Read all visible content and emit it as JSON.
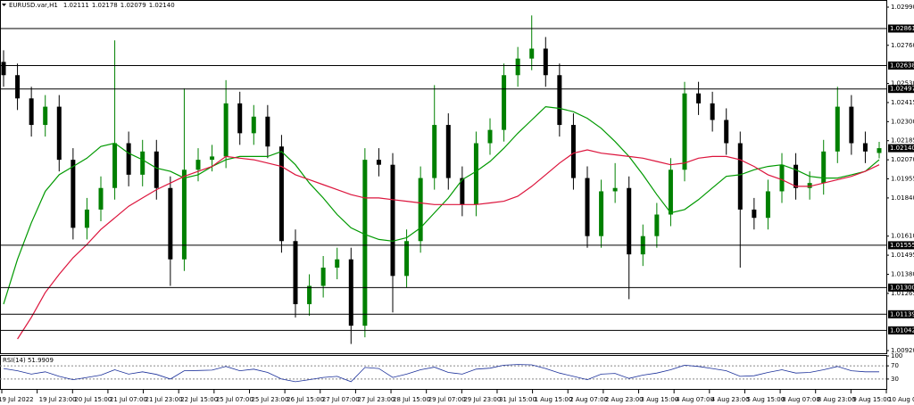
{
  "chart_data": {
    "type": "candlestick",
    "title": "EURUSD.var,H1",
    "ohlc_labels": [
      "1.02111",
      "1.02178",
      "1.02079",
      "1.02140"
    ],
    "up_color": "#008000",
    "down_color": "#000000",
    "ylim": [
      1.00904,
      1.03033
    ],
    "yticks": [
      {
        "value": 1.0299,
        "label": "1.02990"
      },
      {
        "value": 1.0276,
        "label": "1.02760"
      },
      {
        "value": 1.0253,
        "label": "1.02530"
      },
      {
        "value": 1.02415,
        "label": "1.02415"
      },
      {
        "value": 1.023,
        "label": "1.02300"
      },
      {
        "value": 1.02185,
        "label": "1.02185"
      },
      {
        "value": 1.0207,
        "label": "1.02070"
      },
      {
        "value": 1.01955,
        "label": "1.01955"
      },
      {
        "value": 1.0184,
        "label": "1.01840"
      },
      {
        "value": 1.0161,
        "label": "1.01610"
      },
      {
        "value": 1.01495,
        "label": "1.01495"
      },
      {
        "value": 1.0138,
        "label": "1.01380"
      },
      {
        "value": 1.01265,
        "label": "1.01265"
      },
      {
        "value": 1.0092,
        "label": "1.00920"
      }
    ],
    "levels": [
      {
        "value": 1.02861,
        "label": "1.02861"
      },
      {
        "value": 1.02638,
        "label": "1.02638"
      },
      {
        "value": 1.02497,
        "label": "1.02497"
      },
      {
        "value": 1.01555,
        "label": "1.01555"
      },
      {
        "value": 1.013,
        "label": "1.01300"
      },
      {
        "value": 1.01139,
        "label": "1.01139"
      },
      {
        "value": 1.01042,
        "label": "1.01042"
      }
    ],
    "current_price": {
      "value": 1.0214,
      "label": "1.02140"
    },
    "ohlc": [
      [
        1.0266,
        1.0273,
        1.0251,
        1.0258
      ],
      [
        1.0258,
        1.0265,
        1.0237,
        1.0244
      ],
      [
        1.0244,
        1.0251,
        1.0221,
        1.0228
      ],
      [
        1.0228,
        1.0246,
        1.0221,
        1.0239
      ],
      [
        1.0239,
        1.0246,
        1.02,
        1.0207
      ],
      [
        1.0207,
        1.0214,
        1.0159,
        1.0166
      ],
      [
        1.0166,
        1.0184,
        1.0159,
        1.0177
      ],
      [
        1.0177,
        1.0197,
        1.017,
        1.019
      ],
      [
        1.019,
        1.0279,
        1.0183,
        1.0217
      ],
      [
        1.0217,
        1.0224,
        1.0191,
        1.0198
      ],
      [
        1.0198,
        1.0219,
        1.0191,
        1.0212
      ],
      [
        1.0212,
        1.0219,
        1.0183,
        1.019
      ],
      [
        1.019,
        1.0197,
        1.0131,
        1.0147
      ],
      [
        1.0147,
        1.025,
        1.014,
        1.0201
      ],
      [
        1.0201,
        1.0214,
        1.0194,
        1.0207
      ],
      [
        1.0207,
        1.0216,
        1.02,
        1.0209
      ],
      [
        1.0209,
        1.0255,
        1.0202,
        1.0241
      ],
      [
        1.0241,
        1.0248,
        1.0216,
        1.0223
      ],
      [
        1.0223,
        1.024,
        1.0216,
        1.0233
      ],
      [
        1.0233,
        1.024,
        1.0208,
        1.0215
      ],
      [
        1.0215,
        1.0222,
        1.0151,
        1.0158
      ],
      [
        1.0158,
        1.0165,
        1.0112,
        1.012
      ],
      [
        1.012,
        1.0138,
        1.0113,
        1.0131
      ],
      [
        1.0131,
        1.0149,
        1.0124,
        1.0142
      ],
      [
        1.0142,
        1.0154,
        1.0135,
        1.0147
      ],
      [
        1.0147,
        1.0154,
        1.0096,
        1.0107
      ],
      [
        1.0107,
        1.0214,
        1.01,
        1.0207
      ],
      [
        1.0207,
        1.0214,
        1.0197,
        1.0204
      ],
      [
        1.0204,
        1.0211,
        1.0115,
        1.0137
      ],
      [
        1.0137,
        1.0165,
        1.013,
        1.0158
      ],
      [
        1.0158,
        1.0203,
        1.0151,
        1.0196
      ],
      [
        1.0196,
        1.0252,
        1.0189,
        1.0228
      ],
      [
        1.0228,
        1.0235,
        1.0189,
        1.0196
      ],
      [
        1.0196,
        1.0203,
        1.0173,
        1.018
      ],
      [
        1.018,
        1.0224,
        1.0173,
        1.0217
      ],
      [
        1.0217,
        1.0232,
        1.021,
        1.0225
      ],
      [
        1.0225,
        1.0265,
        1.0218,
        1.0258
      ],
      [
        1.0258,
        1.0275,
        1.0251,
        1.0268
      ],
      [
        1.0268,
        1.0294,
        1.0261,
        1.0274
      ],
      [
        1.0274,
        1.0281,
        1.0251,
        1.0258
      ],
      [
        1.0258,
        1.0265,
        1.0221,
        1.0228
      ],
      [
        1.0228,
        1.0235,
        1.0189,
        1.0196
      ],
      [
        1.0196,
        1.0203,
        1.0154,
        1.0161
      ],
      [
        1.0161,
        1.0195,
        1.0154,
        1.0188
      ],
      [
        1.0188,
        1.0205,
        1.0181,
        1.019
      ],
      [
        1.019,
        1.0197,
        1.0123,
        1.015
      ],
      [
        1.015,
        1.0168,
        1.0143,
        1.0161
      ],
      [
        1.0161,
        1.0181,
        1.0154,
        1.0174
      ],
      [
        1.0174,
        1.0208,
        1.0167,
        1.0201
      ],
      [
        1.0201,
        1.0254,
        1.0194,
        1.0247
      ],
      [
        1.0247,
        1.0254,
        1.0234,
        1.0241
      ],
      [
        1.0241,
        1.0248,
        1.0224,
        1.0231
      ],
      [
        1.0231,
        1.0238,
        1.021,
        1.0217
      ],
      [
        1.0217,
        1.0224,
        1.0142,
        1.0177
      ],
      [
        1.0177,
        1.0184,
        1.0165,
        1.0172
      ],
      [
        1.0172,
        1.0195,
        1.0165,
        1.0188
      ],
      [
        1.0188,
        1.0211,
        1.0181,
        1.0204
      ],
      [
        1.0204,
        1.0211,
        1.0183,
        1.019
      ],
      [
        1.019,
        1.02,
        1.0183,
        1.0193
      ],
      [
        1.0193,
        1.0219,
        1.0186,
        1.0212
      ],
      [
        1.0212,
        1.0251,
        1.0205,
        1.0239
      ],
      [
        1.0239,
        1.0246,
        1.021,
        1.0217
      ],
      [
        1.0217,
        1.0224,
        1.0205,
        1.0212
      ],
      [
        1.02111,
        1.02178,
        1.02079,
        1.0214
      ]
    ],
    "moving_averages": [
      {
        "color": "#009900",
        "values": [
          1.012,
          1.0147,
          1.0169,
          1.0188,
          1.0198,
          1.0203,
          1.0208,
          1.0215,
          1.0217,
          1.0211,
          1.0207,
          1.0202,
          1.02,
          1.0196,
          1.0198,
          1.0203,
          1.0207,
          1.0209,
          1.0209,
          1.0209,
          1.0212,
          1.0204,
          1.0193,
          1.0184,
          1.0174,
          1.0166,
          1.0162,
          1.0159,
          1.0158,
          1.016,
          1.0166,
          1.0175,
          1.0184,
          1.0195,
          1.02,
          1.0206,
          1.0214,
          1.0223,
          1.0231,
          1.0239,
          1.0238,
          1.0236,
          1.0232,
          1.0226,
          1.0218,
          1.0209,
          1.0198,
          1.0186,
          1.0175,
          1.0177,
          1.0183,
          1.019,
          1.0197,
          1.0198,
          1.0201,
          1.0203,
          1.0204,
          1.0201,
          1.0197,
          1.0196,
          1.0196,
          1.0198,
          1.02,
          1.0207
        ]
      },
      {
        "color": "#dc143c",
        "values": [
          null,
          1.0099,
          1.0112,
          1.0127,
          1.0138,
          1.0148,
          1.0156,
          1.0165,
          1.0172,
          1.0179,
          1.0184,
          1.0189,
          1.0193,
          1.0197,
          1.02,
          1.0203,
          1.0209,
          1.0208,
          1.0207,
          1.0205,
          1.0203,
          1.0198,
          1.0195,
          1.0192,
          1.0189,
          1.0186,
          1.0184,
          1.0184,
          1.0183,
          1.0182,
          1.0181,
          1.018,
          1.018,
          1.018,
          1.018,
          1.0181,
          1.0182,
          1.0185,
          1.0191,
          1.0198,
          1.0205,
          1.0211,
          1.0213,
          1.0211,
          1.021,
          1.0209,
          1.0208,
          1.0206,
          1.0204,
          1.0205,
          1.0208,
          1.0209,
          1.0209,
          1.0207,
          1.0203,
          1.0198,
          1.0195,
          1.0191,
          1.0191,
          1.0193,
          1.0195,
          1.0197,
          1.02,
          1.0204
        ]
      }
    ],
    "xtick_labels": [
      "19 Jul 2022",
      "19 Jul 23:00",
      "20 Jul 15:00",
      "21 Jul 07:00",
      "21 Jul 23:00",
      "22 Jul 15:00",
      "25 Jul 07:00",
      "25 Jul 23:00",
      "26 Jul 15:00",
      "27 Jul 07:00",
      "27 Jul 23:00",
      "28 Jul 15:00",
      "29 Jul 07:00",
      "29 Jul 23:00",
      "31 Jul 15:00",
      "1 Aug 15:00",
      "2 Aug 07:00",
      "2 Aug 23:00",
      "3 Aug 15:00",
      "4 Aug 07:00",
      "4 Aug 23:00",
      "5 Aug 15:00",
      "8 Aug 07:00",
      "8 Aug 23:00",
      "9 Aug 15:00",
      "10 Aug 07:00"
    ],
    "rsi": {
      "label": "RSI(14) 51.9909",
      "color": "#1a2f9a",
      "ylim": [
        0,
        100
      ],
      "yticks": [
        100,
        70,
        30
      ],
      "levels": [
        70,
        30
      ],
      "values": [
        62,
        55,
        45,
        52,
        38,
        28,
        35,
        42,
        58,
        45,
        52,
        44,
        30,
        55,
        56,
        57,
        68,
        55,
        60,
        50,
        30,
        22,
        28,
        35,
        38,
        22,
        65,
        62,
        35,
        45,
        58,
        66,
        50,
        45,
        60,
        63,
        72,
        74,
        73,
        62,
        48,
        38,
        28,
        45,
        47,
        32,
        42,
        48,
        58,
        72,
        68,
        62,
        55,
        38,
        40,
        50,
        58,
        48,
        50,
        58,
        68,
        55,
        52,
        51.9909
      ]
    }
  }
}
